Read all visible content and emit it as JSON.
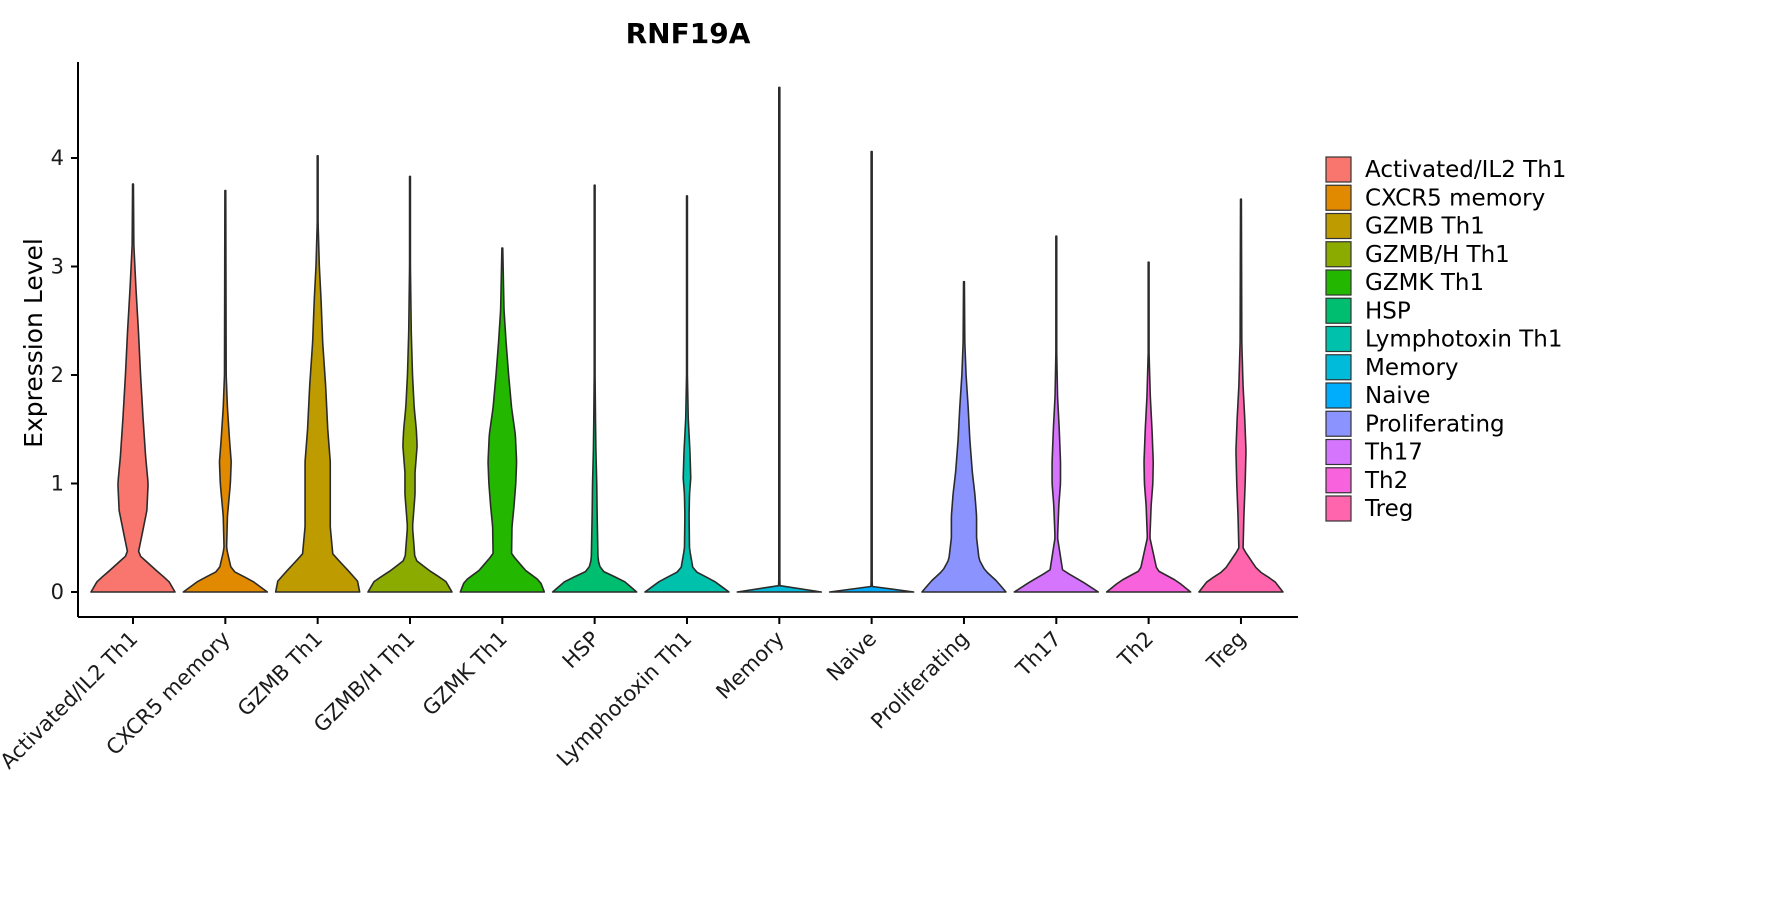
{
  "chart_data": {
    "type": "violin",
    "title": "RNF19A",
    "xlabel": "",
    "ylabel": "Expression Level",
    "ylim": [
      -0.22,
      4.9
    ],
    "yticks": [
      0,
      1,
      2,
      3,
      4
    ],
    "categories": [
      "Activated/IL2 Th1",
      "CXCR5 memory",
      "GZMB Th1",
      "GZMB/H Th1",
      "GZMK Th1",
      "HSP",
      "Lymphotoxin Th1",
      "Memory",
      "Naive",
      "Proliferating",
      "Th17",
      "Th2",
      "Treg"
    ],
    "colors": [
      "#F8766D",
      "#E18A00",
      "#BE9C00",
      "#8CAB00",
      "#24B700",
      "#00BE70",
      "#00C1AB",
      "#00BBDA",
      "#00ACFC",
      "#8B93FF",
      "#D575FE",
      "#F962DD",
      "#FF65AC"
    ],
    "legend": {
      "position": "right",
      "entries": [
        "Activated/IL2 Th1",
        "CXCR5 memory",
        "GZMB Th1",
        "GZMB/H Th1",
        "GZMK Th1",
        "HSP",
        "Lymphotoxin Th1",
        "Memory",
        "Naive",
        "Proliferating",
        "Th17",
        "Th2",
        "Treg"
      ]
    },
    "series": [
      {
        "name": "Activated/IL2 Th1",
        "max": 3.76,
        "profile": [
          [
            0,
            1.0
          ],
          [
            0.1,
            0.85
          ],
          [
            0.2,
            0.55
          ],
          [
            0.35,
            0.12
          ],
          [
            0.5,
            0.2
          ],
          [
            0.75,
            0.33
          ],
          [
            1.0,
            0.36
          ],
          [
            1.25,
            0.3
          ],
          [
            1.6,
            0.24
          ],
          [
            2.0,
            0.18
          ],
          [
            2.4,
            0.13
          ],
          [
            2.8,
            0.07
          ],
          [
            3.2,
            0.02
          ],
          [
            3.76,
            0.01
          ]
        ]
      },
      {
        "name": "CXCR5 memory",
        "max": 3.7,
        "profile": [
          [
            0,
            1.0
          ],
          [
            0.1,
            0.65
          ],
          [
            0.2,
            0.15
          ],
          [
            0.4,
            0.03
          ],
          [
            0.7,
            0.05
          ],
          [
            1.0,
            0.12
          ],
          [
            1.2,
            0.14
          ],
          [
            1.4,
            0.1
          ],
          [
            1.7,
            0.05
          ],
          [
            2.0,
            0.02
          ],
          [
            3.7,
            0.01
          ]
        ]
      },
      {
        "name": "GZMB Th1",
        "max": 4.02,
        "profile": [
          [
            0,
            1.0
          ],
          [
            0.1,
            0.95
          ],
          [
            0.2,
            0.72
          ],
          [
            0.35,
            0.36
          ],
          [
            0.6,
            0.3
          ],
          [
            0.9,
            0.3
          ],
          [
            1.2,
            0.3
          ],
          [
            1.5,
            0.24
          ],
          [
            1.9,
            0.19
          ],
          [
            2.3,
            0.12
          ],
          [
            2.7,
            0.08
          ],
          [
            3.0,
            0.04
          ],
          [
            3.4,
            0.01
          ],
          [
            4.02,
            0.01
          ]
        ]
      },
      {
        "name": "GZMB/H Th1",
        "max": 3.83,
        "profile": [
          [
            0,
            1.0
          ],
          [
            0.1,
            0.85
          ],
          [
            0.2,
            0.45
          ],
          [
            0.3,
            0.12
          ],
          [
            0.6,
            0.06
          ],
          [
            0.9,
            0.12
          ],
          [
            1.1,
            0.12
          ],
          [
            1.35,
            0.17
          ],
          [
            1.5,
            0.15
          ],
          [
            1.7,
            0.1
          ],
          [
            2.0,
            0.06
          ],
          [
            2.4,
            0.03
          ],
          [
            3.0,
            0.01
          ],
          [
            3.83,
            0.01
          ]
        ]
      },
      {
        "name": "GZMK Th1",
        "max": 3.17,
        "profile": [
          [
            0,
            1.0
          ],
          [
            0.1,
            0.9
          ],
          [
            0.2,
            0.55
          ],
          [
            0.35,
            0.22
          ],
          [
            0.6,
            0.23
          ],
          [
            0.8,
            0.28
          ],
          [
            1.0,
            0.32
          ],
          [
            1.2,
            0.34
          ],
          [
            1.45,
            0.31
          ],
          [
            1.7,
            0.22
          ],
          [
            2.0,
            0.15
          ],
          [
            2.3,
            0.09
          ],
          [
            2.6,
            0.04
          ],
          [
            3.17,
            0.01
          ]
        ]
      },
      {
        "name": "HSP",
        "max": 3.75,
        "profile": [
          [
            0,
            1.0
          ],
          [
            0.1,
            0.7
          ],
          [
            0.2,
            0.15
          ],
          [
            0.3,
            0.08
          ],
          [
            0.5,
            0.07
          ],
          [
            0.7,
            0.06
          ],
          [
            1.0,
            0.05
          ],
          [
            1.3,
            0.03
          ],
          [
            1.6,
            0.02
          ],
          [
            2.0,
            0.01
          ],
          [
            3.75,
            0.01
          ]
        ]
      },
      {
        "name": "Lymphotoxin Th1",
        "max": 3.65,
        "profile": [
          [
            0,
            1.0
          ],
          [
            0.1,
            0.65
          ],
          [
            0.2,
            0.15
          ],
          [
            0.4,
            0.06
          ],
          [
            0.7,
            0.05
          ],
          [
            0.9,
            0.06
          ],
          [
            1.05,
            0.09
          ],
          [
            1.3,
            0.07
          ],
          [
            1.6,
            0.03
          ],
          [
            2.0,
            0.01
          ],
          [
            3.65,
            0.01
          ]
        ]
      },
      {
        "name": "Memory",
        "max": 4.65,
        "profile": [
          [
            0,
            1.0
          ],
          [
            0.02,
            0.02
          ],
          [
            0.1,
            0.012
          ],
          [
            4.65,
            0.012
          ]
        ]
      },
      {
        "name": "Naive",
        "max": 4.06,
        "profile": [
          [
            0,
            1.0
          ],
          [
            0.02,
            0.02
          ],
          [
            0.1,
            0.012
          ],
          [
            4.06,
            0.012
          ]
        ]
      },
      {
        "name": "Proliferating",
        "max": 2.86,
        "profile": [
          [
            0,
            1.0
          ],
          [
            0.1,
            0.78
          ],
          [
            0.2,
            0.5
          ],
          [
            0.3,
            0.36
          ],
          [
            0.5,
            0.3
          ],
          [
            0.7,
            0.3
          ],
          [
            0.9,
            0.26
          ],
          [
            1.1,
            0.2
          ],
          [
            1.4,
            0.14
          ],
          [
            1.7,
            0.1
          ],
          [
            2.0,
            0.05
          ],
          [
            2.3,
            0.02
          ],
          [
            2.86,
            0.01
          ]
        ]
      },
      {
        "name": "Th17",
        "max": 3.28,
        "profile": [
          [
            0,
            1.0
          ],
          [
            0.1,
            0.6
          ],
          [
            0.2,
            0.15
          ],
          [
            0.5,
            0.03
          ],
          [
            0.8,
            0.06
          ],
          [
            1.0,
            0.1
          ],
          [
            1.2,
            0.1
          ],
          [
            1.5,
            0.07
          ],
          [
            1.8,
            0.03
          ],
          [
            2.2,
            0.01
          ],
          [
            3.28,
            0.01
          ]
        ]
      },
      {
        "name": "Th2",
        "max": 3.04,
        "profile": [
          [
            0,
            1.0
          ],
          [
            0.1,
            0.68
          ],
          [
            0.2,
            0.2
          ],
          [
            0.5,
            0.03
          ],
          [
            0.8,
            0.06
          ],
          [
            1.0,
            0.1
          ],
          [
            1.2,
            0.11
          ],
          [
            1.5,
            0.08
          ],
          [
            1.8,
            0.04
          ],
          [
            2.2,
            0.01
          ],
          [
            3.04,
            0.01
          ]
        ]
      },
      {
        "name": "Treg",
        "max": 3.62,
        "profile": [
          [
            0,
            1.0
          ],
          [
            0.1,
            0.8
          ],
          [
            0.2,
            0.4
          ],
          [
            0.4,
            0.05
          ],
          [
            0.7,
            0.07
          ],
          [
            1.0,
            0.1
          ],
          [
            1.3,
            0.12
          ],
          [
            1.6,
            0.09
          ],
          [
            1.9,
            0.05
          ],
          [
            2.3,
            0.02
          ],
          [
            3.62,
            0.01
          ]
        ]
      }
    ]
  }
}
